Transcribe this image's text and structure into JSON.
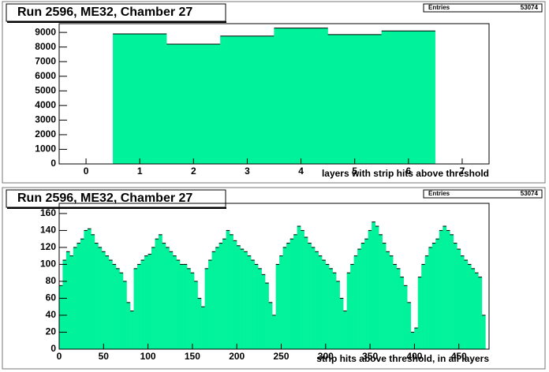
{
  "chart_data": [
    {
      "type": "histogram",
      "title": "Run 2596, ME32, Chamber 27",
      "entries_label": "Entries",
      "entries": 53074,
      "xlabel": "layers with strip hits above threshold",
      "color": "#00f29a",
      "bins": [
        0.5,
        1.5,
        2.5,
        3.5,
        4.5,
        5.5,
        6.5
      ],
      "values": [
        8900,
        8200,
        8750,
        9300,
        8850,
        9100
      ],
      "xlim": [
        -0.5,
        7.5
      ],
      "xticks": [
        0,
        1,
        2,
        3,
        4,
        5,
        6,
        7
      ],
      "ylim": [
        0,
        9600
      ],
      "yticks": [
        0,
        1000,
        2000,
        3000,
        4000,
        5000,
        6000,
        7000,
        8000,
        9000
      ]
    },
    {
      "type": "histogram",
      "title": "Run 2596, ME32, Chamber 27",
      "entries_label": "Entries",
      "entries": 53074,
      "xlabel": "strip hits above threshold, in all layers",
      "color": "#00f29a",
      "bins": [
        0,
        4,
        8,
        12,
        16,
        20,
        24,
        28,
        32,
        36,
        40,
        44,
        48,
        52,
        56,
        60,
        64,
        68,
        72,
        76,
        80,
        84,
        88,
        92,
        96,
        100,
        104,
        108,
        112,
        116,
        120,
        124,
        128,
        132,
        136,
        140,
        144,
        148,
        152,
        156,
        160,
        164,
        168,
        172,
        176,
        180,
        184,
        188,
        192,
        196,
        200,
        204,
        208,
        212,
        216,
        220,
        224,
        228,
        232,
        236,
        240,
        244,
        248,
        252,
        256,
        260,
        264,
        268,
        272,
        276,
        280,
        284,
        288,
        292,
        296,
        300,
        304,
        308,
        312,
        316,
        320,
        324,
        328,
        332,
        336,
        340,
        344,
        348,
        352,
        356,
        360,
        364,
        368,
        372,
        376,
        380,
        384,
        388,
        392,
        396,
        400,
        404,
        408,
        412,
        416,
        420,
        424,
        428,
        432,
        436,
        440,
        444,
        448,
        452,
        456,
        460,
        464,
        468,
        472,
        476,
        480
      ],
      "values": [
        75,
        105,
        115,
        110,
        120,
        125,
        130,
        140,
        142,
        135,
        125,
        120,
        115,
        110,
        105,
        100,
        95,
        90,
        80,
        55,
        45,
        95,
        100,
        105,
        110,
        112,
        120,
        130,
        135,
        125,
        120,
        115,
        110,
        105,
        100,
        100,
        95,
        90,
        80,
        60,
        50,
        95,
        105,
        115,
        120,
        125,
        130,
        140,
        135,
        128,
        122,
        118,
        115,
        110,
        105,
        100,
        95,
        88,
        78,
        55,
        40,
        100,
        110,
        120,
        125,
        130,
        135,
        145,
        140,
        132,
        125,
        120,
        115,
        110,
        105,
        100,
        95,
        90,
        80,
        60,
        45,
        90,
        100,
        110,
        118,
        125,
        130,
        140,
        150,
        145,
        135,
        125,
        115,
        110,
        100,
        95,
        85,
        75,
        55,
        20,
        25,
        85,
        100,
        110,
        120,
        125,
        130,
        140,
        145,
        140,
        135,
        125,
        118,
        110,
        105,
        100,
        95,
        90,
        85,
        40
      ],
      "xlim": [
        0,
        484
      ],
      "xticks": [
        0,
        50,
        100,
        150,
        200,
        250,
        300,
        350,
        400,
        450
      ],
      "ylim": [
        0,
        172
      ],
      "yticks": [
        0,
        20,
        40,
        60,
        80,
        100,
        120,
        140,
        160
      ]
    }
  ]
}
